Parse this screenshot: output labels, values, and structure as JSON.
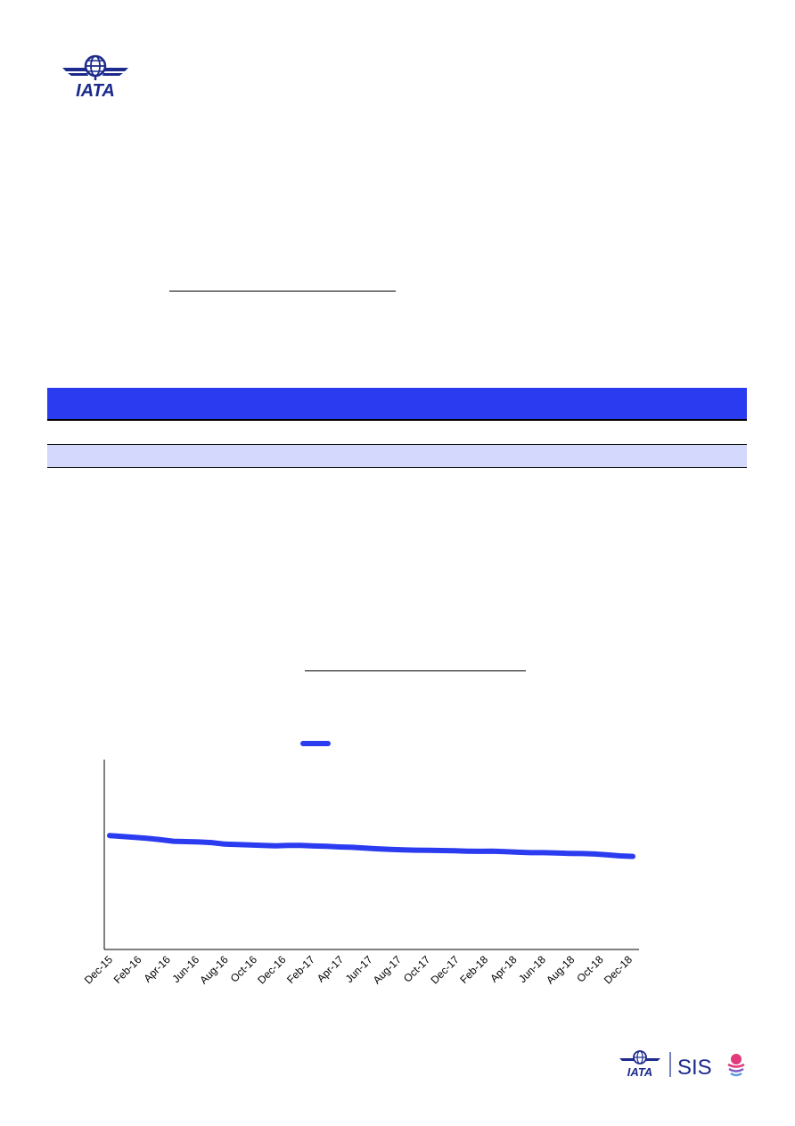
{
  "header": {
    "logo_icon": "iata-globe-logo",
    "logo_text": "IATA"
  },
  "colors": {
    "accent_blue": "#2b3cf0",
    "row_tint": "#d4d8fc",
    "axis": "#000000"
  },
  "chart_data": {
    "type": "line",
    "title": "",
    "xlabel": "",
    "ylabel": "",
    "legend": "top-center",
    "grid": false,
    "x_tick_labels": [
      "Dec-15",
      "Feb-16",
      "Apr-16",
      "Jun-16",
      "Aug-16",
      "Oct-16",
      "Dec-16",
      "Feb-17",
      "Apr-17",
      "Jun-17",
      "Aug-17",
      "Oct-17",
      "Dec-17",
      "Feb-18",
      "Apr-18",
      "Jun-18",
      "Aug-18",
      "Oct-18",
      "Dec-18"
    ],
    "ylim": [
      0,
      100
    ],
    "series": [
      {
        "name": "",
        "color": "#2b3cf0",
        "values": [
          60,
          59.5,
          59,
          58.5,
          57.8,
          57,
          56.8,
          56.6,
          56.3,
          55.5,
          55.3,
          55,
          54.8,
          54.6,
          54.8,
          54.8,
          54.5,
          54.3,
          54,
          53.8,
          53.4,
          53,
          52.7,
          52.5,
          52.3,
          52.2,
          52.1,
          52.0,
          51.8,
          51.7,
          51.8,
          51.5,
          51.2,
          51.0,
          51.0,
          50.8,
          50.6,
          50.5,
          50.3,
          49.8,
          49.3,
          49
        ]
      }
    ]
  },
  "footer": {
    "logo_text": "IATA",
    "product_text": "SIS"
  }
}
